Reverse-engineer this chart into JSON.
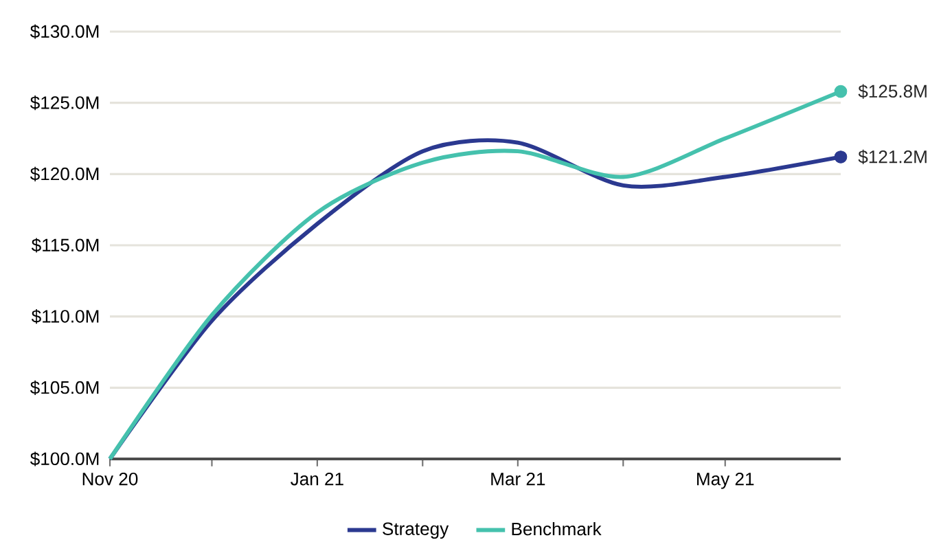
{
  "chart_data": {
    "type": "line",
    "x": [
      "2020-11-01",
      "2020-12-01",
      "2021-01-01",
      "2021-02-01",
      "2021-03-01",
      "2021-04-01",
      "2021-05-01",
      "2021-06-04"
    ],
    "series": [
      {
        "name": "Strategy",
        "color": "#2b3990",
        "values": [
          100.0,
          109.7,
          116.5,
          121.6,
          122.2,
          119.2,
          119.8,
          121.2
        ],
        "value_labels": [
          null,
          null,
          null,
          null,
          null,
          null,
          null,
          "$121.2M"
        ]
      },
      {
        "name": "Benchmark",
        "color": "#45c1ad",
        "values": [
          100.0,
          110.1,
          117.3,
          120.8,
          121.6,
          119.8,
          122.5,
          125.8
        ],
        "value_labels": [
          null,
          null,
          null,
          null,
          null,
          null,
          null,
          "$125.8M"
        ]
      }
    ],
    "xlim": [
      "2020-11-01",
      "2021-06-04"
    ],
    "xticks": [
      {
        "value": "2020-11-01",
        "label": "Nov 20"
      },
      {
        "value": "2020-12-01",
        "label": null
      },
      {
        "value": "2021-01-01",
        "label": "Jan 21"
      },
      {
        "value": "2021-02-01",
        "label": null
      },
      {
        "value": "2021-03-01",
        "label": "Mar 21"
      },
      {
        "value": "2021-04-01",
        "label": null
      },
      {
        "value": "2021-05-01",
        "label": "May 21"
      }
    ],
    "ylim": [
      100,
      130
    ],
    "yticks": [
      {
        "value": 100,
        "label": "$100.0M"
      },
      {
        "value": 105,
        "label": "$105.0M"
      },
      {
        "value": 110,
        "label": "$110.0M"
      },
      {
        "value": 115,
        "label": "$115.0M"
      },
      {
        "value": 120,
        "label": "$120.0M"
      },
      {
        "value": 125,
        "label": "$125.0M"
      },
      {
        "value": 130,
        "label": "$130.0M"
      }
    ],
    "grid": "y",
    "legend": "bottom",
    "marker": "none",
    "line_style": "solid"
  }
}
